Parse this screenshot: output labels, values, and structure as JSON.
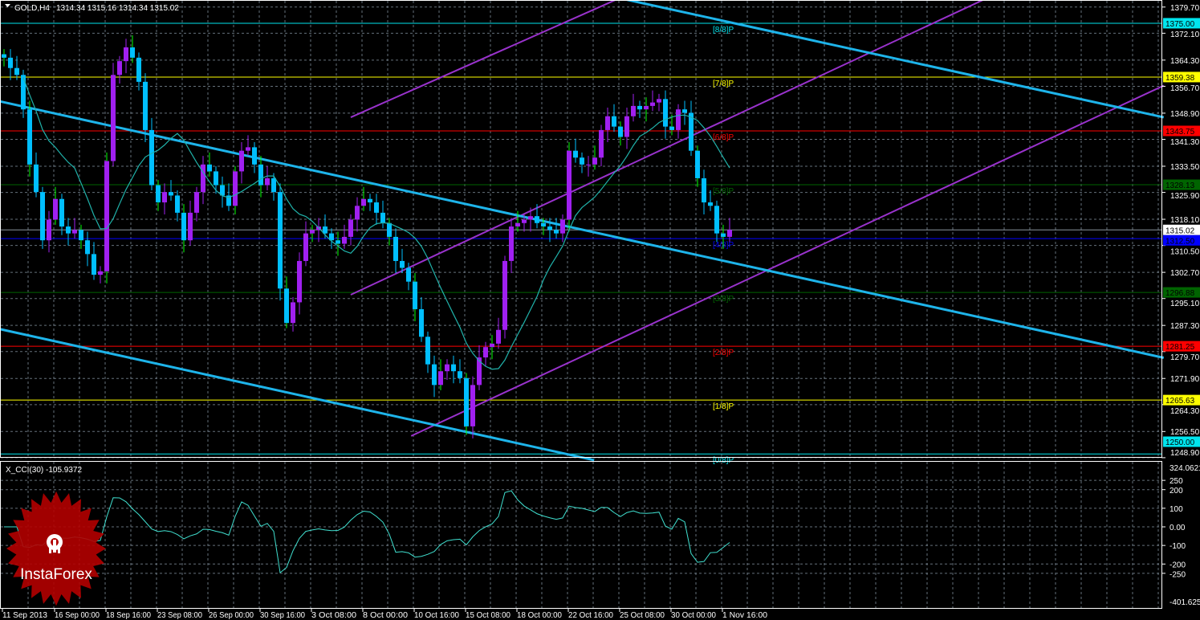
{
  "header": {
    "symbol": "GOLD,H4",
    "ohlc": "1314.34 1315.16 1314.34 1315.02"
  },
  "colors": {
    "background": "#000000",
    "grid": "#7f8c99",
    "bull": "#a020f0",
    "bear": "#00bfff",
    "wick": "#00ff00",
    "ma": "#20b2aa",
    "cci": "#40e0d0",
    "channel_blue": "#1eb4ea",
    "channel_purple": "#9932cc"
  },
  "chart_data": [
    {
      "type": "candlestick",
      "title": "GOLD,H4",
      "current_price": 1315.02,
      "price_axis_ticks": [
        1379.7,
        1372.1,
        1364.3,
        1356.7,
        1348.9,
        1341.3,
        1333.5,
        1325.9,
        1318.1,
        1310.5,
        1302.7,
        1295.1,
        1287.3,
        1279.7,
        1271.9,
        1264.3,
        1256.5,
        1248.9
      ],
      "ylim": [
        1248.9,
        1379.7
      ],
      "x_tick_labels": [
        "11 Sep 2013",
        "16 Sep 00:00",
        "18 Sep 16:00",
        "23 Sep 08:00",
        "26 Sep 00:00",
        "30 Sep 16:00",
        "3 Oct 08:00",
        "8 Oct 00:00",
        "10 Oct 16:00",
        "15 Oct 08:00",
        "18 Oct 00:00",
        "22 Oct 16:00",
        "25 Oct 08:00",
        "30 Oct 00:00",
        "1 Nov 16:00"
      ],
      "closes": [
        1365,
        1362,
        1360,
        1350,
        1334,
        1326,
        1312,
        1318,
        1324,
        1316,
        1314,
        1315,
        1312,
        1308,
        1302,
        1303,
        1335,
        1360,
        1364,
        1368,
        1365,
        1358,
        1344,
        1328,
        1323,
        1326,
        1325,
        1320,
        1312,
        1320,
        1326,
        1334,
        1332,
        1328,
        1325,
        1322,
        1332,
        1338,
        1339,
        1334,
        1328,
        1330,
        1326,
        1298,
        1288,
        1294,
        1306,
        1314,
        1315,
        1316,
        1314,
        1312,
        1311,
        1313,
        1318,
        1322,
        1324,
        1323,
        1320,
        1317,
        1313,
        1306,
        1304,
        1300,
        1292,
        1284,
        1276,
        1270,
        1274,
        1276,
        1274,
        1272,
        1258,
        1270,
        1278,
        1281,
        1282,
        1286,
        1306,
        1316,
        1317,
        1318,
        1319,
        1317,
        1316,
        1315,
        1314,
        1318,
        1338,
        1336,
        1334,
        1334,
        1336,
        1344,
        1348,
        1345,
        1342,
        1348,
        1351,
        1350,
        1351,
        1352,
        1353,
        1345,
        1344,
        1350,
        1349,
        1338,
        1330,
        1323,
        1322,
        1314,
        1313,
        1315.02
      ],
      "murrey_levels": [
        {
          "label": "[8/8]P",
          "price": 1375.0,
          "price_label": "1375.00",
          "color": "#00e5ee",
          "text": "#000000"
        },
        {
          "label": "[7/8]P",
          "price": 1359.38,
          "price_label": "1359.38",
          "color": "#ffff00",
          "text": "#000000"
        },
        {
          "label": "[6/8]P",
          "price": 1343.75,
          "price_label": "1343.75",
          "color": "#ff0000",
          "text": "#000000"
        },
        {
          "label": "[5/8]P",
          "price": 1328.13,
          "price_label": "1328.13",
          "color": "#006400",
          "text": "#000000"
        },
        {
          "label": "[4/8]P",
          "price": 1312.5,
          "price_label": "1312.50",
          "color": "#0000ff",
          "text": "#000000"
        },
        {
          "label": "[3/8]P",
          "price": 1296.88,
          "price_label": "1296.88",
          "color": "#006400",
          "text": "#000000"
        },
        {
          "label": "[2/8]P",
          "price": 1281.25,
          "price_label": "1281.25",
          "color": "#ff0000",
          "text": "#000000"
        },
        {
          "label": "[1/8]P",
          "price": 1265.63,
          "price_label": "1265.63",
          "color": "#ffff00",
          "text": "#000000"
        },
        {
          "label": "[0/8]P",
          "price": 1250.0,
          "price_label": "1250.00",
          "color": "#00e5ee",
          "text": "#000000"
        }
      ],
      "trendlines": [
        {
          "color": "#9932cc",
          "from": [
            54,
            1347.7
          ],
          "to": [
            100,
            1385.7
          ]
        },
        {
          "color": "#9932cc",
          "from": [
            54,
            1296.2
          ],
          "to": [
            157,
            1385.7
          ]
        },
        {
          "color": "#9932cc",
          "from": [
            63.4,
            1255.2
          ],
          "to": [
            180.6,
            1356.9
          ]
        },
        {
          "color": "#1eb4ea",
          "from": [
            -0.6,
            1352.3
          ],
          "to": [
            180.6,
            1277.9
          ]
        },
        {
          "color": "#1eb4ea",
          "from": [
            -0.6,
            1286.2
          ],
          "to": [
            91.9,
            1248.2
          ]
        },
        {
          "color": "#1eb4ea",
          "from": [
            87.5,
            1385.7
          ],
          "to": [
            180.6,
            1347.7
          ]
        }
      ]
    },
    {
      "type": "line",
      "title": "X_CCI(30) -105.9372",
      "ylim": [
        -401.6252,
        324.0621
      ],
      "y_tick_labels": [
        "324.0621",
        "250",
        "200",
        "100",
        "0.00",
        "-100",
        "-200",
        "-250",
        "-401.6252"
      ],
      "y_tick_values": [
        324.0621,
        250,
        200,
        100,
        0,
        -100,
        -200,
        -250,
        -401.6252
      ]
    }
  ],
  "logo": {
    "text": "InstaForex"
  }
}
